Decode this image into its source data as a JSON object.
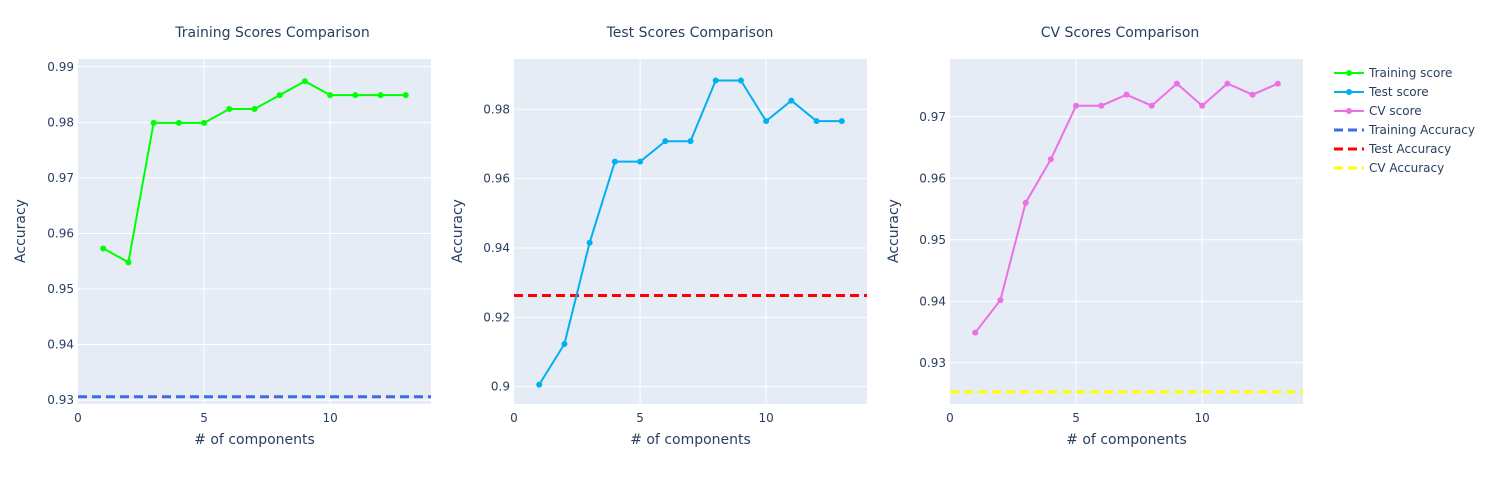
{
  "chart_data": [
    {
      "type": "line",
      "title": "Training Scores Comparison",
      "xlabel": "# of components",
      "ylabel": "Accuracy",
      "xlim": [
        0,
        14
      ],
      "ylim": [
        0.9293,
        0.9914
      ],
      "xticks": [
        0,
        5,
        10
      ],
      "yticks": [
        0.93,
        0.94,
        0.95,
        0.96,
        0.97,
        0.98,
        0.99
      ],
      "ytick_labels": [
        "0.93",
        "0.94",
        "0.95",
        "0.96",
        "0.97",
        "0.98",
        "0.99"
      ],
      "grid": true,
      "series": [
        {
          "name": "Training score",
          "color": "#00ff00",
          "x": [
            1,
            2,
            3,
            4,
            5,
            6,
            7,
            8,
            9,
            10,
            11,
            12,
            13
          ],
          "y": [
            0.9573,
            0.9548,
            0.9799,
            0.9799,
            0.9799,
            0.9824,
            0.9824,
            0.9849,
            0.9874,
            0.9849,
            0.9849,
            0.9849,
            0.9849
          ]
        }
      ],
      "hline": {
        "name": "Training Accuracy",
        "y": 0.9306,
        "color": "#4169e1"
      }
    },
    {
      "type": "line",
      "title": "Test Scores Comparison",
      "xlabel": "# of components",
      "ylabel": "Accuracy",
      "xlim": [
        0,
        14
      ],
      "ylim": [
        0.895,
        0.9945
      ],
      "xticks": [
        0,
        5,
        10
      ],
      "yticks": [
        0.9,
        0.92,
        0.94,
        0.96,
        0.98
      ],
      "ytick_labels": [
        "0.9",
        "0.92",
        "0.94",
        "0.96",
        "0.98"
      ],
      "grid": true,
      "series": [
        {
          "name": "Test score",
          "color": "#00b0f0",
          "x": [
            1,
            2,
            3,
            4,
            5,
            6,
            7,
            8,
            9,
            10,
            11,
            12,
            13
          ],
          "y": [
            0.9006,
            0.9123,
            0.9415,
            0.9649,
            0.9649,
            0.9708,
            0.9708,
            0.9883,
            0.9883,
            0.9766,
            0.9825,
            0.9766,
            0.9766
          ]
        }
      ],
      "hline": {
        "name": "Test Accuracy",
        "y": 0.9263,
        "color": "#ff0000"
      }
    },
    {
      "type": "line",
      "title": "CV Scores Comparison",
      "xlabel": "# of components",
      "ylabel": "Accuracy",
      "xlim": [
        0,
        14
      ],
      "ylim": [
        0.9233,
        0.9794
      ],
      "xticks": [
        0,
        5,
        10
      ],
      "yticks": [
        0.93,
        0.94,
        0.95,
        0.96,
        0.97
      ],
      "ytick_labels": [
        "0.93",
        "0.94",
        "0.95",
        "0.96",
        "0.97"
      ],
      "grid": true,
      "series": [
        {
          "name": "CV score",
          "color": "#ee6ee6",
          "x": [
            1,
            2,
            3,
            4,
            5,
            6,
            7,
            8,
            9,
            10,
            11,
            12,
            13
          ],
          "y": [
            0.9349,
            0.9402,
            0.956,
            0.9631,
            0.9718,
            0.9718,
            0.9736,
            0.9718,
            0.9754,
            0.9718,
            0.9754,
            0.9736,
            0.9754
          ]
        }
      ],
      "hline": {
        "name": "CV Accuracy",
        "y": 0.9253,
        "color": "#ffff00"
      }
    }
  ],
  "legend": {
    "placement": "right",
    "entries": [
      {
        "label": "Training score",
        "color": "#00ff00",
        "style": "line-marker"
      },
      {
        "label": "Test score",
        "color": "#00b0f0",
        "style": "line-marker"
      },
      {
        "label": "CV score",
        "color": "#ee6ee6",
        "style": "line-marker"
      },
      {
        "label": "Training Accuracy",
        "color": "#4169e1",
        "style": "dash"
      },
      {
        "label": "Test Accuracy",
        "color": "#ff0000",
        "style": "dash"
      },
      {
        "label": "CV Accuracy",
        "color": "#ffff00",
        "style": "dash"
      }
    ]
  },
  "theme": {
    "plot_bg": "#e5ecf6",
    "grid": "#ffffff",
    "text": "#2a3f5f"
  }
}
